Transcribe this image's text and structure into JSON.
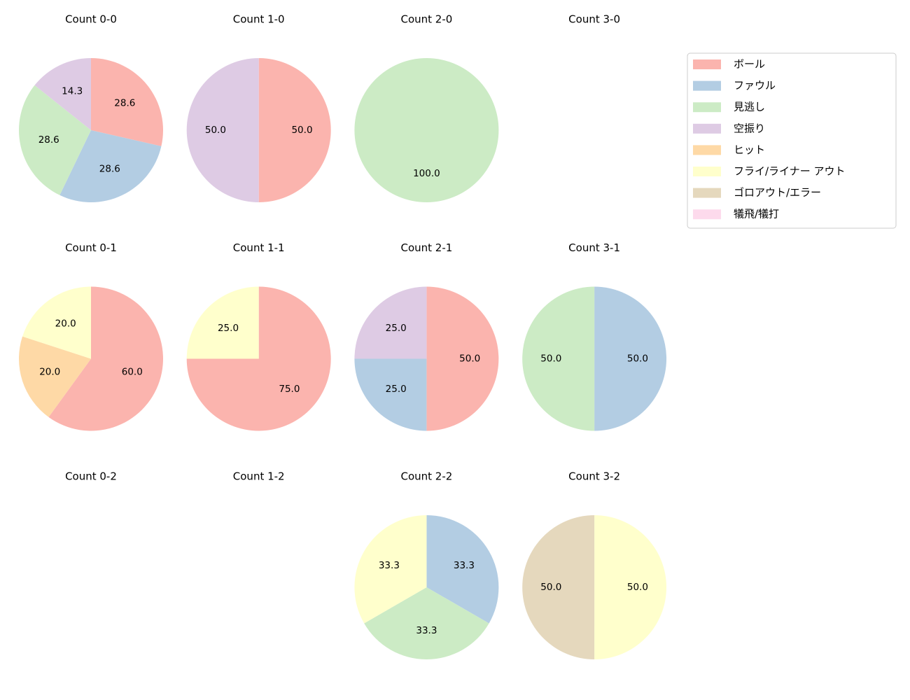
{
  "chart_data": [
    {
      "type": "pie",
      "title": "Count 0-0",
      "values": [
        28.6,
        28.6,
        28.6,
        14.3,
        null,
        null,
        null,
        null
      ],
      "value_labels": [
        "28.6",
        "28.6",
        "28.6",
        "14.3",
        null,
        null,
        null,
        null
      ]
    },
    {
      "type": "pie",
      "title": "Count 1-0",
      "values": [
        50,
        null,
        null,
        50,
        null,
        null,
        null,
        null
      ],
      "value_labels": [
        "50.0",
        null,
        null,
        "50.0",
        null,
        null,
        null,
        null
      ]
    },
    {
      "type": "pie",
      "title": "Count 2-0",
      "values": [
        null,
        null,
        100,
        null,
        null,
        null,
        null,
        null
      ],
      "value_labels": [
        null,
        null,
        "100.0",
        null,
        null,
        null,
        null,
        null
      ]
    },
    {
      "type": "pie",
      "title": "Count 3-0"
    },
    {
      "type": "pie",
      "title": "Count 0-1",
      "values": [
        60,
        null,
        null,
        null,
        20,
        20,
        null,
        null
      ],
      "value_labels": [
        "60.0",
        null,
        null,
        null,
        "20.0",
        "20.0",
        null,
        null
      ]
    },
    {
      "type": "pie",
      "title": "Count 1-1",
      "values": [
        75,
        null,
        null,
        null,
        null,
        25,
        null,
        null
      ],
      "value_labels": [
        "75.0",
        null,
        null,
        null,
        null,
        "25.0",
        null,
        null
      ]
    },
    {
      "type": "pie",
      "title": "Count 2-1",
      "values": [
        50,
        25,
        null,
        25,
        null,
        null,
        null,
        null
      ],
      "value_labels": [
        "50.0",
        "25.0",
        null,
        "25.0",
        null,
        null,
        null,
        null
      ]
    },
    {
      "type": "pie",
      "title": "Count 3-1",
      "values": [
        null,
        50,
        50,
        null,
        null,
        null,
        null,
        null
      ],
      "value_labels": [
        null,
        "50.0",
        "50.0",
        null,
        null,
        null,
        null,
        null
      ]
    },
    {
      "type": "pie",
      "title": "Count 0-2"
    },
    {
      "type": "pie",
      "title": "Count 1-2"
    },
    {
      "type": "pie",
      "title": "Count 2-2",
      "values": [
        null,
        33.3,
        33.3,
        null,
        null,
        33.3,
        null,
        null
      ],
      "value_labels": [
        null,
        "33.3",
        "33.3",
        null,
        null,
        "33.3",
        null,
        null
      ]
    },
    {
      "type": "pie",
      "title": "Count 3-2",
      "values": [
        null,
        null,
        null,
        null,
        null,
        50,
        50,
        null
      ],
      "value_labels": [
        null,
        null,
        null,
        null,
        null,
        "50.0",
        "50.0",
        null
      ]
    }
  ],
  "legend": {
    "labels": [
      "ボール",
      "ファウル",
      "見逃し",
      "空振り",
      "ヒット",
      "フライ/ライナー アウト",
      "ゴロアウト/エラー",
      "犠飛/犠打"
    ],
    "colors": [
      "#fbb4ae",
      "#b3cde3",
      "#ccebc5",
      "#decbe4",
      "#fed9a6",
      "#ffffcc",
      "#e5d8bd",
      "#fddaec"
    ]
  }
}
